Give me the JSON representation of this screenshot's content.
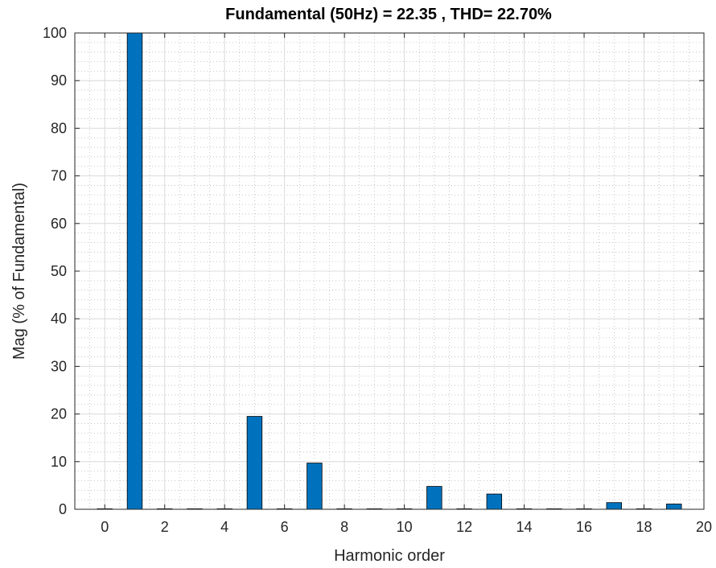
{
  "chart_data": {
    "type": "bar",
    "title": "Fundamental (50Hz) = 22.35 , THD= 22.70%",
    "xlabel": "Harmonic order",
    "ylabel": "Mag (% of Fundamental)",
    "xlim": [
      -1,
      20
    ],
    "ylim": [
      0,
      100
    ],
    "xticks": [
      0,
      2,
      4,
      6,
      8,
      10,
      12,
      14,
      16,
      18,
      20
    ],
    "yticks": [
      0,
      10,
      20,
      30,
      40,
      50,
      60,
      70,
      80,
      90,
      100
    ],
    "grid": true,
    "minor_grid": true,
    "bar_color": "#0072BD",
    "bar_edge_color": "#000000",
    "x": [
      0,
      1,
      2,
      3,
      4,
      5,
      6,
      7,
      8,
      9,
      10,
      11,
      12,
      13,
      14,
      15,
      16,
      17,
      18,
      19
    ],
    "values": [
      0,
      100,
      0.05,
      0.1,
      0.05,
      19.5,
      0.05,
      9.7,
      0.05,
      0.1,
      0.05,
      4.8,
      0.05,
      3.2,
      0.05,
      0.1,
      0.05,
      1.4,
      0.05,
      1.1
    ]
  }
}
